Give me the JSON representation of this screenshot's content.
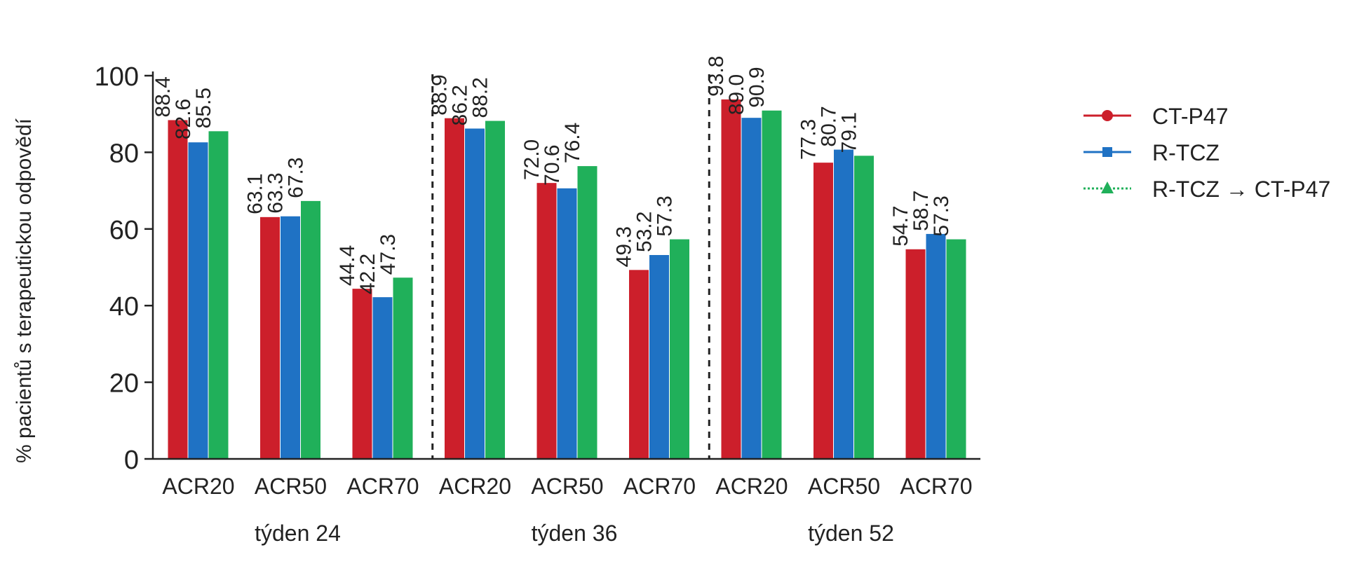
{
  "chart_data": {
    "type": "bar",
    "ylabel": "% pacientů s terapeutickou odpovědí",
    "ylim": [
      0,
      100
    ],
    "yticks": [
      0,
      20,
      40,
      60,
      80,
      100
    ],
    "groups": [
      {
        "label": "týden 24",
        "categories": [
          "ACR20",
          "ACR50",
          "ACR70"
        ]
      },
      {
        "label": "týden 36",
        "categories": [
          "ACR20",
          "ACR50",
          "ACR70"
        ]
      },
      {
        "label": "týden 52",
        "categories": [
          "ACR20",
          "ACR50",
          "ACR70"
        ]
      }
    ],
    "series": [
      {
        "name": "CT-P47",
        "color": "#cc1f2b",
        "marker": "circle",
        "line": "solid",
        "values": [
          88.4,
          63.1,
          44.4,
          88.9,
          72.0,
          49.3,
          93.8,
          77.3,
          54.7
        ],
        "labels": [
          "88.4",
          "63.1",
          "44.4",
          "88.9",
          "72.0",
          "49.3",
          "93.8",
          "77.3",
          "54.7"
        ]
      },
      {
        "name": "R-TCZ",
        "color": "#1f72c4",
        "marker": "square",
        "line": "solid",
        "values": [
          82.6,
          63.3,
          42.2,
          86.2,
          70.6,
          53.2,
          89.0,
          80.7,
          58.7
        ],
        "labels": [
          "82.6",
          "63.3",
          "42.2",
          "86.2",
          "70.6",
          "53.2",
          "89.0",
          "80.7",
          "58.7"
        ]
      },
      {
        "name": "R-TCZ → CT-P47",
        "color": "#20b05a",
        "marker": "triangle",
        "line": "dotted",
        "values": [
          85.5,
          67.3,
          47.3,
          88.2,
          76.4,
          57.3,
          90.9,
          79.1,
          57.3
        ],
        "labels": [
          "85.5",
          "67.3",
          "47.3",
          "88.2",
          "76.4",
          "57.3",
          "90.9",
          "79.1",
          "57.3"
        ]
      }
    ],
    "separators": "dashed lines between week groups",
    "legend": "right",
    "grid": false
  }
}
